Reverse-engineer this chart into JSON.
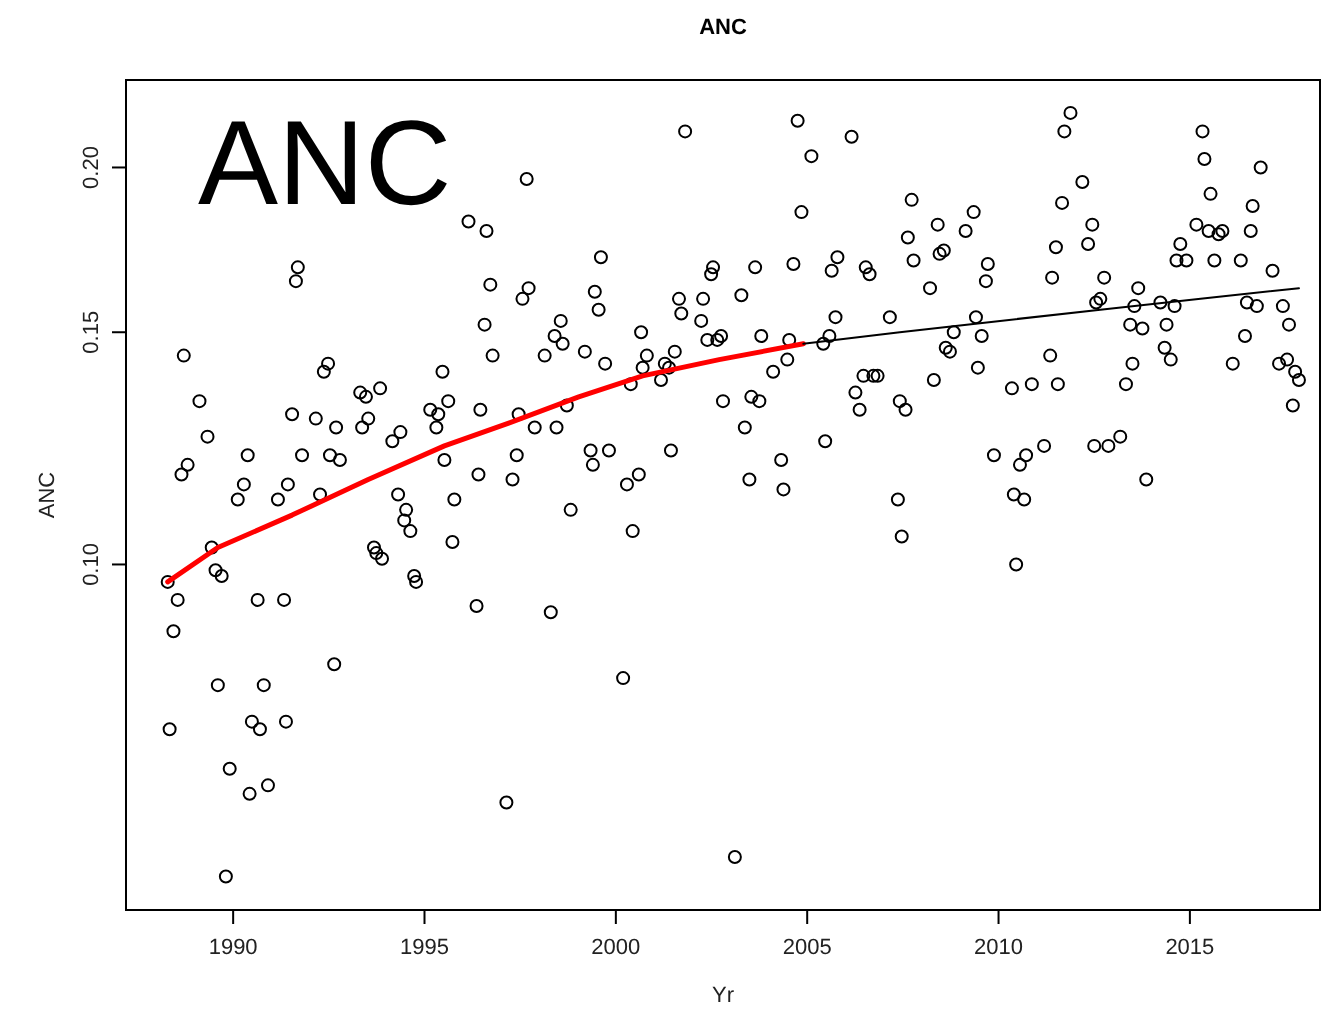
{
  "chart_data": {
    "type": "scatter",
    "title": "ANC",
    "xlabel": "Yr",
    "ylabel": "ANC",
    "annotations": [
      "ANC"
    ],
    "log": true,
    "grid": false,
    "xlim": [
      1987.2,
      2018.4
    ],
    "ylim": [
      0.0547,
      0.233
    ],
    "xticks": [
      1990,
      1995,
      2000,
      2005,
      2010,
      2015
    ],
    "yticks": [
      {
        "value": 0.1,
        "label": "0.10"
      },
      {
        "value": 0.15,
        "label": "0.15"
      },
      {
        "value": 0.2,
        "label": "0.20"
      }
    ],
    "series": [
      {
        "type": "scatter",
        "color": "#000000",
        "marker": "circle",
        "x": [
          1996.15,
          1996.62,
          1991.69,
          1991.64,
          1996.72,
          1996.57,
          1988.71,
          1996.78,
          1992.48,
          1992.37,
          1995.47,
          1989.12,
          1993.84,
          1993.32,
          1993.47,
          1995.62,
          1995.15,
          1996.46,
          1995.36,
          1991.54,
          1992.16,
          1993.53,
          1997.46,
          1992.69,
          1993.37,
          1995.31,
          1994.37,
          1994.16,
          1989.33,
          1990.38,
          1991.8,
          1992.53,
          1992.79,
          1995.52,
          1997.41,
          1988.81,
          1988.65,
          1996.41,
          1997.3,
          1990.28,
          1991.43,
          1992.27,
          1990.12,
          1991.17,
          1994.31,
          1995.78,
          1994.52,
          1994.47,
          1994.63,
          1995.73,
          1989.44,
          1993.68,
          1993.74,
          1993.89,
          1989.54,
          1989.7,
          1988.29,
          1994.73,
          1994.78,
          1988.55,
          1990.64,
          1991.33,
          1996.36,
          1988.44,
          1992.64,
          1989.6,
          1990.8,
          1990.49,
          1990.7,
          1991.38,
          1988.34,
          1989.91,
          1990.43,
          1990.91,
          1989.81,
          1997.14,
          1997.67,
          2001.81,
          2004.75,
          2006.16,
          2005.11,
          2007.73,
          2004.85,
          2007.63,
          2007.78,
          1999.61,
          1997.72,
          1997.56,
          1999.45,
          1999.55,
          2002.54,
          2002.49,
          2003.64,
          2004.64,
          2005.79,
          2005.64,
          2006.53,
          2006.63,
          2001.65,
          2002.28,
          2003.28,
          2001.71,
          2002.23,
          2007.16,
          1998.56,
          1998.4,
          1998.61,
          2000.66,
          2002.39,
          2002.65,
          2002.75,
          2003.8,
          2004.53,
          2005.74,
          2005.58,
          2005.42,
          1998.14,
          1999.19,
          1999.72,
          2000.81,
          2000.7,
          2001.28,
          2001.39,
          2001.54,
          2000.39,
          2001.18,
          2004.48,
          2004.11,
          2006.47,
          2006.73,
          2006.84,
          2006.26,
          2006.37,
          2007.42,
          2007.57,
          2002.8,
          2003.54,
          2003.75,
          1998.72,
          1997.88,
          1998.45,
          2003.37,
          2005.47,
          1999.34,
          1999.4,
          1999.82,
          2001.44,
          2004.32,
          2000.6,
          2000.29,
          2003.49,
          2004.38,
          2007.37,
          1998.82,
          2000.44,
          2007.47,
          1998.3,
          2000.19,
          2003.11,
          2011.88,
          2011.72,
          2015.33,
          2015.38,
          2016.85,
          2012.19,
          2011.66,
          2015.54,
          2016.64,
          2009.35,
          2009.14,
          2008.41,
          2012.45,
          2011.5,
          2012.34,
          2015.17,
          2015.49,
          2015.75,
          2015.85,
          2016.59,
          2008.46,
          2008.57,
          2009.72,
          2009.67,
          2014.75,
          2014.65,
          2014.91,
          2015.64,
          2016.33,
          2017.16,
          2008.21,
          2011.4,
          2012.76,
          2013.65,
          2012.55,
          2012.66,
          2013.55,
          2014.23,
          2014.6,
          2016.49,
          2016.75,
          2017.43,
          2009.41,
          2008.83,
          2009.56,
          2013.44,
          2013.76,
          2014.39,
          2017.59,
          2016.44,
          2008.62,
          2008.73,
          2011.35,
          2013.5,
          2014.34,
          2014.5,
          2016.12,
          2017.33,
          2017.54,
          2017.75,
          2017.85,
          2009.46,
          2008.31,
          2010.35,
          2010.87,
          2011.55,
          2013.33,
          2017.69,
          2009.88,
          2010.72,
          2010.56,
          2011.19,
          2012.5,
          2012.87,
          2013.18,
          2013.86,
          2010.4,
          2010.67,
          2010.46
        ],
        "values": [
          0.182,
          0.179,
          0.168,
          0.164,
          0.163,
          0.152,
          0.144,
          0.144,
          0.142,
          0.14,
          0.14,
          0.133,
          0.136,
          0.135,
          0.134,
          0.133,
          0.131,
          0.131,
          0.13,
          0.13,
          0.129,
          0.129,
          0.13,
          0.127,
          0.127,
          0.127,
          0.126,
          0.124,
          0.125,
          0.121,
          0.121,
          0.121,
          0.12,
          0.12,
          0.121,
          0.119,
          0.117,
          0.117,
          0.116,
          0.115,
          0.115,
          0.113,
          0.112,
          0.112,
          0.113,
          0.112,
          0.11,
          0.108,
          0.106,
          0.104,
          0.103,
          0.103,
          0.102,
          0.101,
          0.099,
          0.098,
          0.097,
          0.098,
          0.097,
          0.094,
          0.094,
          0.094,
          0.093,
          0.089,
          0.084,
          0.081,
          0.081,
          0.076,
          0.075,
          0.076,
          0.075,
          0.07,
          0.067,
          0.068,
          0.058,
          0.066,
          0.196,
          0.213,
          0.217,
          0.211,
          0.204,
          0.189,
          0.185,
          0.177,
          0.17,
          0.171,
          0.162,
          0.159,
          0.161,
          0.156,
          0.168,
          0.166,
          0.168,
          0.169,
          0.171,
          0.167,
          0.168,
          0.166,
          0.159,
          0.159,
          0.16,
          0.155,
          0.153,
          0.154,
          0.153,
          0.149,
          0.147,
          0.15,
          0.148,
          0.148,
          0.149,
          0.149,
          0.148,
          0.154,
          0.149,
          0.147,
          0.144,
          0.145,
          0.142,
          0.144,
          0.141,
          0.142,
          0.141,
          0.145,
          0.137,
          0.138,
          0.143,
          0.14,
          0.139,
          0.139,
          0.139,
          0.135,
          0.131,
          0.133,
          0.131,
          0.133,
          0.134,
          0.133,
          0.132,
          0.127,
          0.127,
          0.127,
          0.124,
          0.122,
          0.119,
          0.122,
          0.122,
          0.12,
          0.117,
          0.115,
          0.116,
          0.114,
          0.112,
          0.11,
          0.106,
          0.105,
          0.092,
          0.082,
          0.06,
          0.22,
          0.213,
          0.213,
          0.203,
          0.2,
          0.195,
          0.188,
          0.191,
          0.187,
          0.185,
          0.179,
          0.181,
          0.181,
          0.174,
          0.175,
          0.181,
          0.179,
          0.178,
          0.179,
          0.179,
          0.172,
          0.173,
          0.169,
          0.164,
          0.175,
          0.17,
          0.17,
          0.17,
          0.17,
          0.167,
          0.162,
          0.165,
          0.165,
          0.162,
          0.158,
          0.159,
          0.157,
          0.158,
          0.157,
          0.158,
          0.157,
          0.157,
          0.154,
          0.15,
          0.149,
          0.152,
          0.151,
          0.152,
          0.152,
          0.149,
          0.146,
          0.145,
          0.144,
          0.142,
          0.146,
          0.143,
          0.142,
          0.142,
          0.143,
          0.14,
          0.138,
          0.141,
          0.138,
          0.136,
          0.137,
          0.137,
          0.137,
          0.132,
          0.121,
          0.121,
          0.119,
          0.123,
          0.123,
          0.123,
          0.125,
          0.116,
          0.113,
          0.112,
          0.1
        ]
      },
      {
        "type": "line",
        "color": "#ff0000",
        "x": [
          1988.29,
          1989.6,
          1991.54,
          1993.53,
          1995.52,
          1997.2,
          1999.03,
          2000.7,
          2002.7,
          2004.9
        ],
        "values": [
          0.097,
          0.103,
          0.109,
          0.116,
          0.123,
          0.128,
          0.134,
          0.139,
          0.143,
          0.147
        ]
      },
      {
        "type": "line",
        "color": "#000000",
        "x": [
          2004.9,
          2007.42,
          2010.04,
          2012.66,
          2015.28,
          2017.85
        ],
        "values": [
          0.147,
          0.15,
          0.153,
          0.156,
          0.159,
          0.162
        ]
      }
    ]
  }
}
